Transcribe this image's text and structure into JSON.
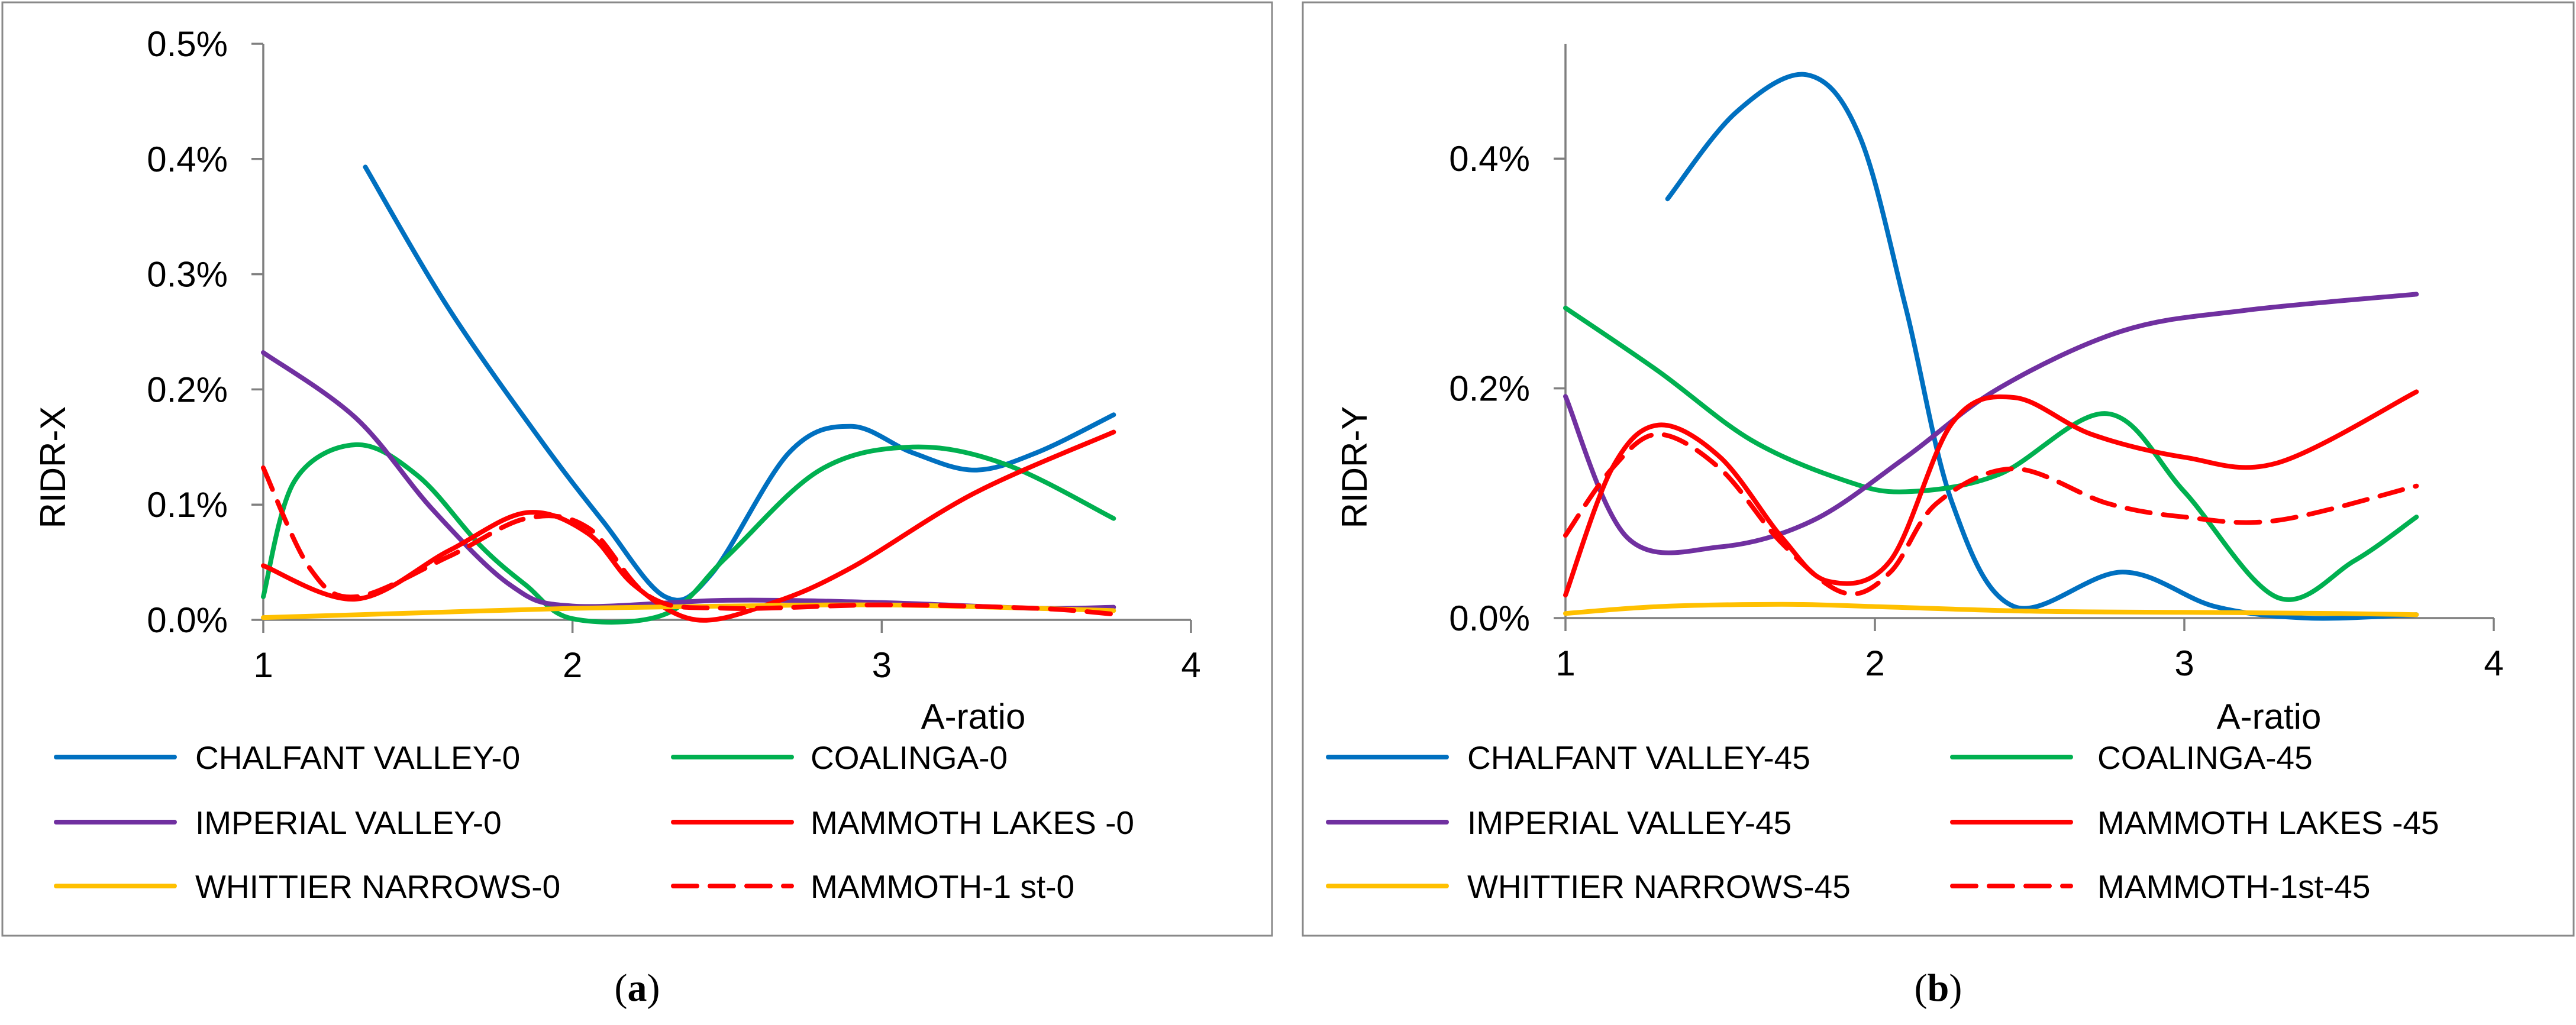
{
  "chart_data": [
    {
      "type": "line",
      "panel": "a",
      "caption_letter": "a",
      "xlabel": "A-ratio",
      "ylabel": "RIDR-X",
      "xlim": [
        1,
        4
      ],
      "ylim": [
        0,
        0.5
      ],
      "x_ticks": [
        1,
        2,
        3,
        4
      ],
      "y_ticks": [
        0,
        0.1,
        0.2,
        0.3,
        0.4,
        0.5
      ],
      "y_tick_labels": [
        "0.0%",
        "0.1%",
        "0.2%",
        "0.3%",
        "0.4%",
        "0.5%"
      ],
      "grid": false,
      "legend_position": "bottom",
      "series": [
        {
          "name": "CHALFANT VALLEY-0",
          "color": "#0070c0",
          "dash": "solid",
          "x": [
            1.33,
            1.6,
            1.9,
            2.1,
            2.3,
            2.45,
            2.7,
            2.9,
            3.1,
            3.3,
            3.5,
            3.75
          ],
          "y": [
            0.393,
            0.27,
            0.155,
            0.085,
            0.02,
            0.04,
            0.145,
            0.168,
            0.145,
            0.13,
            0.145,
            0.178
          ]
        },
        {
          "name": "COALINGA-0",
          "color": "#00b050",
          "dash": "solid",
          "x": [
            1.0,
            1.1,
            1.3,
            1.5,
            1.7,
            1.85,
            2.0,
            2.3,
            2.5,
            2.8,
            3.1,
            3.4,
            3.75
          ],
          "y": [
            0.02,
            0.12,
            0.152,
            0.125,
            0.065,
            0.03,
            0.001,
            0.005,
            0.055,
            0.13,
            0.15,
            0.135,
            0.088
          ]
        },
        {
          "name": "IMPERIAL VALLEY-0",
          "color": "#7030a0",
          "dash": "solid",
          "x": [
            1.0,
            1.3,
            1.55,
            1.8,
            2.0,
            2.5,
            3.0,
            3.5,
            3.75
          ],
          "y": [
            0.232,
            0.175,
            0.095,
            0.03,
            0.012,
            0.017,
            0.015,
            0.01,
            0.011
          ]
        },
        {
          "name": "MAMMOTH LAKES -0",
          "color": "#ff0000",
          "dash": "solid",
          "x": [
            1.0,
            1.3,
            1.6,
            1.85,
            2.05,
            2.2,
            2.4,
            2.65,
            2.9,
            3.3,
            3.75
          ],
          "y": [
            0.047,
            0.018,
            0.06,
            0.093,
            0.075,
            0.03,
            0.0,
            0.015,
            0.045,
            0.11,
            0.163
          ]
        },
        {
          "name": "WHITTIER NARROWS-0",
          "color": "#ffc000",
          "dash": "solid",
          "x": [
            1.0,
            1.5,
            2.0,
            2.5,
            3.0,
            3.5,
            3.75
          ],
          "y": [
            0.002,
            0.006,
            0.01,
            0.012,
            0.013,
            0.01,
            0.008
          ]
        },
        {
          "name": "MAMMOTH-1 st-0",
          "color": "#ff0000",
          "dash": "dashed",
          "x": [
            1.0,
            1.15,
            1.3,
            1.6,
            1.85,
            2.05,
            2.25,
            2.5,
            3.0,
            3.5,
            3.75
          ],
          "y": [
            0.132,
            0.045,
            0.02,
            0.055,
            0.088,
            0.08,
            0.02,
            0.01,
            0.013,
            0.01,
            0.005
          ]
        }
      ]
    },
    {
      "type": "line",
      "panel": "b",
      "caption_letter": "b",
      "xlabel": "A-ratio",
      "ylabel": "RIDR-Y",
      "xlim": [
        1,
        4
      ],
      "ylim": [
        0,
        0.5
      ],
      "x_ticks": [
        1,
        2,
        3,
        4
      ],
      "y_ticks": [
        0,
        0.2,
        0.4
      ],
      "y_tick_labels": [
        "0.0%",
        "0.2%",
        "0.4%"
      ],
      "grid": false,
      "legend_position": "bottom",
      "series": [
        {
          "name": "CHALFANT VALLEY-45",
          "color": "#0070c0",
          "dash": "solid",
          "x": [
            1.33,
            1.55,
            1.78,
            1.95,
            2.1,
            2.25,
            2.45,
            2.8,
            3.1,
            3.4,
            3.75
          ],
          "y": [
            0.365,
            0.44,
            0.473,
            0.42,
            0.27,
            0.1,
            0.01,
            0.04,
            0.01,
            0.0,
            0.003
          ]
        },
        {
          "name": "COALINGA-45",
          "color": "#00b050",
          "dash": "solid",
          "x": [
            1.0,
            1.3,
            1.6,
            1.9,
            2.1,
            2.4,
            2.75,
            3.0,
            3.3,
            3.55,
            3.75
          ],
          "y": [
            0.27,
            0.215,
            0.155,
            0.12,
            0.11,
            0.125,
            0.178,
            0.11,
            0.018,
            0.05,
            0.088
          ]
        },
        {
          "name": "IMPERIAL VALLEY-45",
          "color": "#7030a0",
          "dash": "solid",
          "x": [
            1.0,
            1.2,
            1.5,
            1.8,
            2.1,
            2.4,
            2.8,
            3.2,
            3.75
          ],
          "y": [
            0.193,
            0.07,
            0.062,
            0.085,
            0.14,
            0.2,
            0.25,
            0.268,
            0.282
          ]
        },
        {
          "name": "MAMMOTH LAKES -45",
          "color": "#ff0000",
          "dash": "solid",
          "x": [
            1.0,
            1.15,
            1.3,
            1.5,
            1.7,
            1.85,
            2.05,
            2.25,
            2.45,
            2.7,
            3.0,
            3.3,
            3.75
          ],
          "y": [
            0.02,
            0.13,
            0.168,
            0.14,
            0.07,
            0.032,
            0.05,
            0.17,
            0.192,
            0.16,
            0.14,
            0.135,
            0.197
          ]
        },
        {
          "name": "WHITTIER NARROWS-45",
          "color": "#ffc000",
          "dash": "solid",
          "x": [
            1.0,
            1.3,
            1.7,
            2.0,
            2.5,
            3.0,
            3.5,
            3.75
          ],
          "y": [
            0.004,
            0.01,
            0.012,
            0.01,
            0.006,
            0.005,
            0.004,
            0.003
          ]
        },
        {
          "name": "MAMMOTH-1st-45",
          "color": "#ff0000",
          "dash": "dashed",
          "x": [
            1.0,
            1.15,
            1.3,
            1.5,
            1.7,
            1.9,
            2.05,
            2.2,
            2.45,
            2.75,
            3.0,
            3.3,
            3.75
          ],
          "y": [
            0.072,
            0.13,
            0.16,
            0.13,
            0.065,
            0.022,
            0.04,
            0.1,
            0.13,
            0.1,
            0.088,
            0.085,
            0.115
          ]
        }
      ]
    }
  ]
}
